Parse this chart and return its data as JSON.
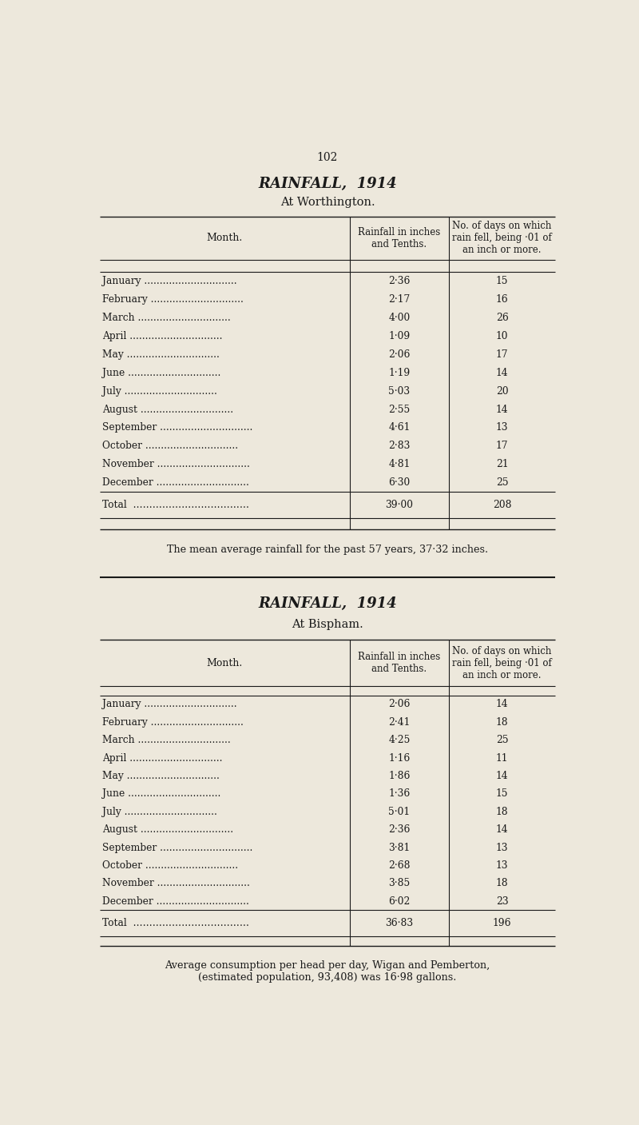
{
  "page_number": "102",
  "bg_color": "#ede8dc",
  "text_color": "#1a1a1a",
  "section1_title": "RAINFALL,  1914",
  "section1_subtitle": "At Worthington.",
  "section1_col1_header": "Month.",
  "section1_col2_header": "Rainfall in inches\nand Tenths.",
  "section1_col3_header": "No. of days on which\nrain fell, being ·01 of\nan inch or more.",
  "section1_months": [
    "January",
    "February",
    "March",
    "April",
    "May",
    "June",
    "July",
    "August",
    "September",
    "October",
    "November",
    "December"
  ],
  "section1_rainfall": [
    "2·36",
    "2·17",
    "4·00",
    "1·09",
    "2·06",
    "1·19",
    "5·03",
    "2·55",
    "4·61",
    "2·83",
    "4·81",
    "6·30"
  ],
  "section1_days": [
    "15",
    "16",
    "26",
    "10",
    "17",
    "14",
    "20",
    "14",
    "13",
    "17",
    "21",
    "25"
  ],
  "section1_total_rainfall": "39·00",
  "section1_total_days": "208",
  "section1_footnote": "The mean average rainfall for the past 57 years, 37·32 inches.",
  "section2_title": "RAINFALL,  1914",
  "section2_subtitle": "At Bispham.",
  "section2_col1_header": "Month.",
  "section2_col2_header": "Rainfall in inches\nand Tenths.",
  "section2_col3_header": "No. of days on which\nrain fell, being ·01 of\nan inch or more.",
  "section2_months": [
    "January",
    "February",
    "March",
    "April",
    "May",
    "June",
    "July",
    "August",
    "September",
    "October",
    "November",
    "December"
  ],
  "section2_rainfall": [
    "2·06",
    "2·41",
    "4·25",
    "1·16",
    "1·86",
    "1·36",
    "5·01",
    "2·36",
    "3·81",
    "2·68",
    "3·85",
    "6·02"
  ],
  "section2_days": [
    "14",
    "18",
    "25",
    "11",
    "14",
    "15",
    "18",
    "14",
    "13",
    "13",
    "18",
    "23"
  ],
  "section2_total_rainfall": "36·83",
  "section2_total_days": "196",
  "section2_footnote": "Average consumption per head per day, Wigan and Pemberton,\n(estimated population, 93,408) was 16·98 gallons."
}
